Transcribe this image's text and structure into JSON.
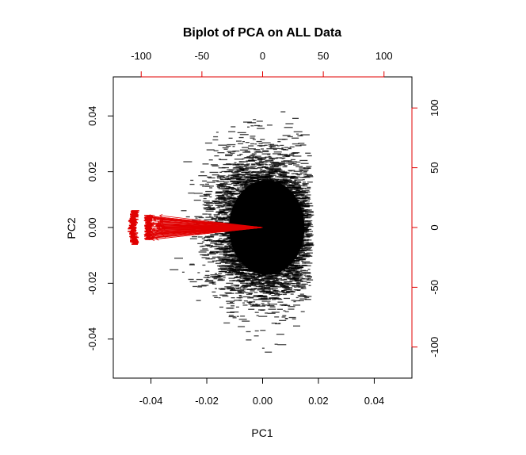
{
  "chart_data": {
    "type": "scatter",
    "title": "Biplot of PCA on ALL Data",
    "xlabel": "PC1",
    "ylabel": "PC2",
    "xlim": [
      -0.0535,
      0.0535
    ],
    "ylim": [
      -0.054,
      0.054
    ],
    "x_ticks": [
      -0.04,
      -0.02,
      0.0,
      0.02,
      0.04
    ],
    "x_tick_labels": [
      "-0.04",
      "-0.02",
      "0.00",
      "0.02",
      "0.04"
    ],
    "y_ticks": [
      -0.04,
      -0.02,
      0.0,
      0.02,
      0.04
    ],
    "y_tick_labels": [
      "-0.04",
      "-0.02",
      "0.00",
      "0.02",
      "0.04"
    ],
    "secondary_axes": {
      "color": "#e00000",
      "xlim": [
        -123,
        123
      ],
      "ylim": [
        -126,
        126
      ],
      "x_ticks": [
        -100,
        -50,
        0,
        50,
        100
      ],
      "x_tick_labels": [
        "-100",
        "-50",
        "0",
        "50",
        "100"
      ],
      "y_ticks": [
        -100,
        -50,
        0,
        50,
        100
      ],
      "y_tick_labels": [
        "-100",
        "-50",
        "0",
        "50",
        "100"
      ]
    },
    "grid": false,
    "legend": "none",
    "series": [
      {
        "kind": "scores",
        "color": "#000000",
        "point_count_approx": 6000,
        "x_range": [
          -0.035,
          0.017
        ],
        "y_range": [
          -0.048,
          0.042
        ],
        "cloud_center": [
          0.001,
          0.0
        ],
        "cloud_spread": [
          0.0095,
          0.0125
        ]
      },
      {
        "kind": "loadings",
        "color": "#e00000",
        "origin": [
          0,
          0
        ],
        "arrow_count": 60,
        "arrow_tip_x_range": [
          -98,
          -82
        ],
        "arrow_tip_y_range": [
          -10,
          10
        ],
        "label_column_x": -105,
        "label_column_y_range": [
          -14,
          14
        ]
      }
    ]
  }
}
